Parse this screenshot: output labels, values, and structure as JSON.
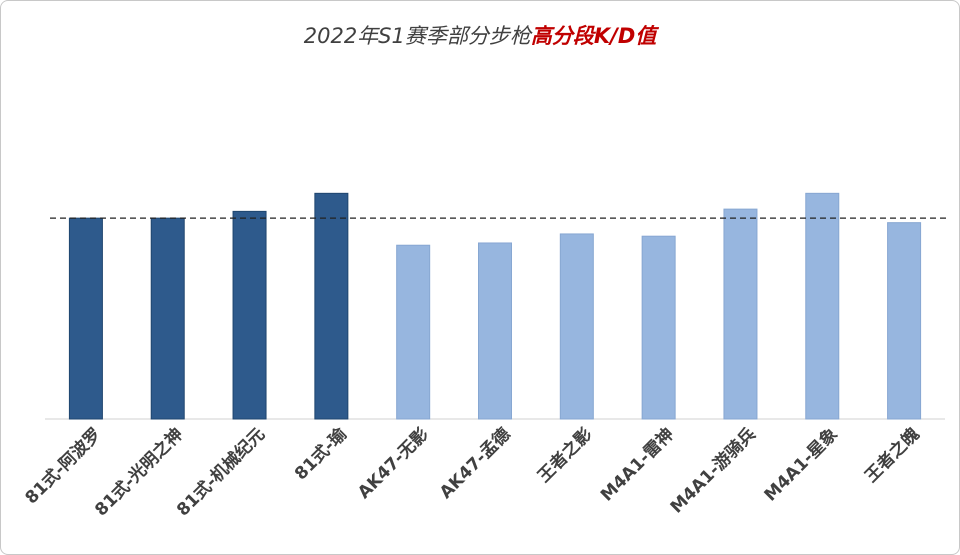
{
  "title": {
    "prefix": "2022年S1赛季部分步枪",
    "highlight": "高分段K/D值"
  },
  "chart_data": {
    "type": "bar",
    "categories": [
      "81式-阿波罗",
      "81式-光明之神",
      "81式-机械纪元",
      "81式-瑜",
      "AK47-无影",
      "AK47-孟德",
      "王者之影",
      "M4A1-雷神",
      "M4A1-游骑兵",
      "M4A1-星象",
      "王者之魄"
    ],
    "values": [
      0.89,
      0.89,
      0.92,
      1.0,
      0.77,
      0.78,
      0.82,
      0.81,
      0.93,
      1.0,
      0.87
    ],
    "group": [
      "81",
      "81",
      "81",
      "81",
      "other",
      "other",
      "other",
      "other",
      "other",
      "other",
      "other"
    ],
    "reference_line": 0.89,
    "ylim": [
      0,
      1.48
    ],
    "colors": {
      "81": "#2e5a8c",
      "other": "#97b6df",
      "reference_line": "#222222",
      "baseline": "#d0d0d0"
    }
  }
}
